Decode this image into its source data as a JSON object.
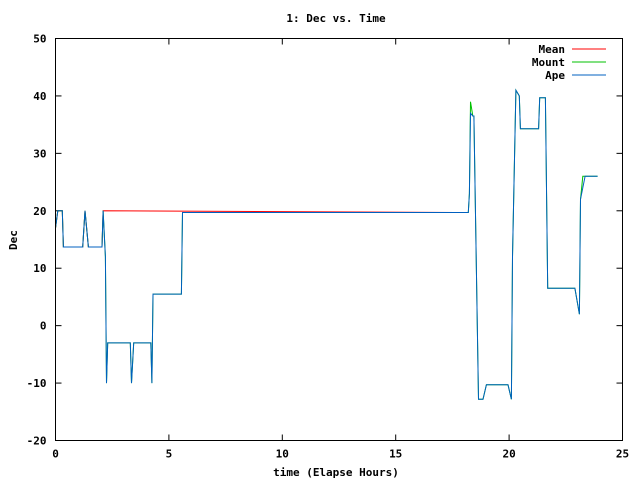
{
  "chart_data": {
    "type": "line",
    "title": "1: Dec vs. Time",
    "xlabel": "time (Elapse Hours)",
    "ylabel": "Dec",
    "xlim": [
      0,
      25
    ],
    "ylim": [
      -20,
      50
    ],
    "xticks": [
      0,
      5,
      10,
      15,
      20,
      25
    ],
    "yticks": [
      -20,
      -10,
      0,
      10,
      20,
      30,
      40,
      50
    ],
    "grid": false,
    "legend_position": "top-right",
    "series": [
      {
        "name": "Mean",
        "color": "#ff0000",
        "x": [
          0,
          0.1,
          0.3,
          0.35,
          1.2,
          1.3,
          1.45,
          2.05,
          2.1,
          17.6,
          18.2
        ],
        "y": [
          17,
          20,
          20,
          13.7,
          13.7,
          20,
          13.7,
          13.7,
          20,
          19.7,
          19.7
        ]
      },
      {
        "name": "Mount",
        "color": "#00c000",
        "x": [
          0,
          0.1,
          0.3,
          0.35,
          1.2,
          1.3,
          1.45,
          2.05,
          2.1,
          2.2,
          2.25,
          2.3,
          3.3,
          3.35,
          3.45,
          3.55,
          4.2,
          4.25,
          4.3,
          4.4,
          5.4,
          5.55,
          5.6,
          17.6,
          18.2,
          18.25,
          18.3,
          18.4,
          18.45,
          18.6,
          18.65,
          18.85,
          19,
          19.95,
          20.1,
          20.15,
          20.3,
          20.45,
          20.5,
          20.55,
          21.1,
          21.3,
          21.35,
          21.6,
          21.7,
          21.85,
          21.9,
          22.9,
          23.1,
          23.15,
          23.25,
          23.35,
          23.4,
          23.9
        ],
        "y": [
          17,
          20,
          20,
          13.7,
          13.7,
          20,
          13.7,
          13.7,
          20,
          12,
          -10,
          -3,
          -3,
          -10,
          -3,
          -3,
          -3,
          -10,
          5.5,
          5.5,
          5.5,
          5.5,
          19.7,
          19.7,
          19.7,
          23,
          39,
          36.5,
          36.5,
          0,
          -12.8,
          -12.8,
          -10.3,
          -10.3,
          -12.8,
          12,
          41,
          40,
          34.3,
          34.3,
          34.3,
          34.3,
          39.7,
          39.7,
          6.5,
          6.5,
          6.5,
          6.5,
          2,
          22,
          26,
          26,
          26,
          26
        ]
      },
      {
        "name": "Ape",
        "color": "#0060c0",
        "x": [
          0,
          0.1,
          0.3,
          0.35,
          1.2,
          1.3,
          1.45,
          2.05,
          2.1,
          2.2,
          2.25,
          2.3,
          3.3,
          3.35,
          3.45,
          3.55,
          4.2,
          4.25,
          4.3,
          4.4,
          5.4,
          5.55,
          5.6,
          17.6,
          18.2,
          18.25,
          18.3,
          18.4,
          18.45,
          18.6,
          18.65,
          18.85,
          19,
          19.95,
          20.1,
          20.15,
          20.3,
          20.45,
          20.5,
          20.55,
          21.1,
          21.3,
          21.35,
          21.6,
          21.7,
          21.85,
          21.9,
          22.9,
          23.1,
          23.15,
          23.25,
          23.35,
          23.4,
          23.9
        ],
        "y": [
          17,
          20,
          20,
          13.7,
          13.7,
          20,
          13.7,
          13.7,
          20,
          12,
          -10,
          -3,
          -3,
          -10,
          -3,
          -3,
          -3,
          -10,
          5.5,
          5.5,
          5.5,
          5.5,
          19.7,
          19.7,
          19.7,
          23,
          37,
          36.5,
          36.5,
          0,
          -12.8,
          -12.8,
          -10.3,
          -10.3,
          -12.8,
          12,
          41,
          40,
          34.3,
          34.3,
          34.3,
          34.3,
          39.7,
          39.7,
          6.5,
          6.5,
          6.5,
          6.5,
          2,
          22,
          24,
          26,
          26,
          26
        ]
      }
    ]
  }
}
